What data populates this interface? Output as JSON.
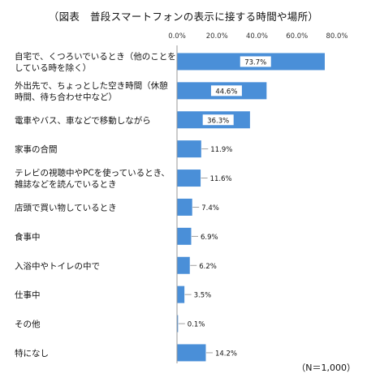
{
  "chart_data": {
    "type": "bar",
    "orientation": "horizontal",
    "title": "（図表　普段スマートフォンの表示に接する時間や場所）",
    "xlim": [
      0,
      80
    ],
    "ticks": [
      "0.0%",
      "20.0%",
      "40.0%",
      "60.0%",
      "80.0%"
    ],
    "tick_values": [
      0,
      20,
      40,
      60,
      80
    ],
    "grid": false,
    "categories": [
      [
        "自宅で、くつろいでいるとき（他のことを",
        "している時を除く）"
      ],
      [
        "外出先で、ちょっとした空き時間（休憩",
        "時間、待ち合わせ中など）"
      ],
      [
        "電車やバス、車などで移動しながら"
      ],
      [
        "家事の合間"
      ],
      [
        "テレビの視聴中やPCを使っているとき、",
        "雑誌などを読んでいるとき"
      ],
      [
        "店頭で買い物しているとき"
      ],
      [
        "食事中"
      ],
      [
        "入浴中やトイレの中で"
      ],
      [
        "仕事中"
      ],
      [
        "その他"
      ],
      [
        "特になし"
      ]
    ],
    "values": [
      73.7,
      44.6,
      36.3,
      11.9,
      11.6,
      7.4,
      6.9,
      6.2,
      3.5,
      0.1,
      14.2
    ],
    "data_labels": [
      "73.7%",
      "44.6%",
      "36.3%",
      "11.9%",
      "11.6%",
      "7.4%",
      "6.9%",
      "6.2%",
      "3.5%",
      "0.1%",
      "14.2%"
    ],
    "bar_color": "#4a8fd8",
    "note": "（N＝1,000）"
  }
}
